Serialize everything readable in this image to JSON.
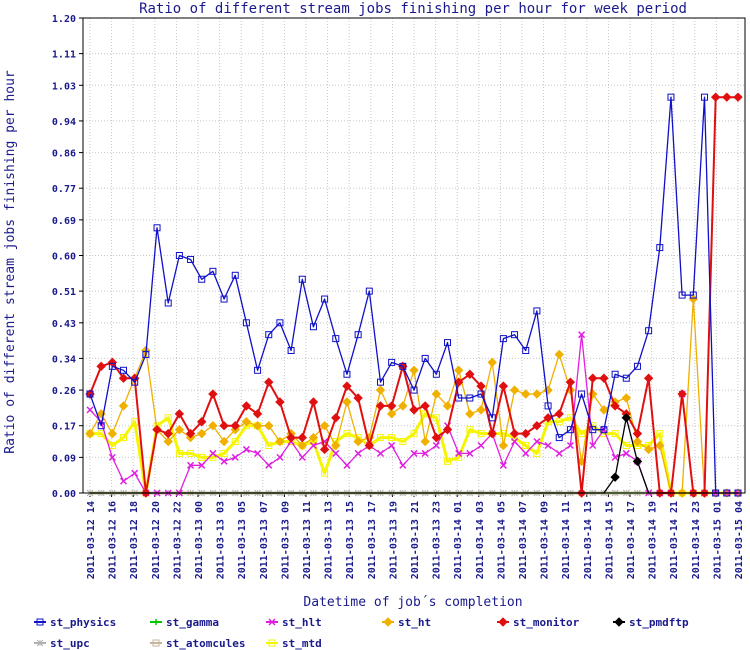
{
  "chart_data": {
    "type": "line",
    "title": "Ratio of different stream jobs finishing per hour for week period",
    "xlabel": "Datetime of job´s completion",
    "ylabel": "Ratio of different stream jobs finishing per hour",
    "ylim": [
      0,
      1.2
    ],
    "yticks": [
      "0.00",
      "0.09",
      "0.17",
      "0.26",
      "0.34",
      "0.43",
      "0.51",
      "0.60",
      "0.69",
      "0.77",
      "0.86",
      "0.94",
      "1.03",
      "1.11",
      "1.20"
    ],
    "xticks": [
      "2011-03-12 14",
      "2011-03-12 16",
      "2011-03-12 18",
      "2011-03-12 20",
      "2011-03-12 22",
      "2011-03-13 00",
      "2011-03-13 03",
      "2011-03-13 05",
      "2011-03-13 07",
      "2011-03-13 09",
      "2011-03-13 11",
      "2011-03-13 13",
      "2011-03-13 15",
      "2011-03-13 17",
      "2011-03-13 19",
      "2011-03-13 21",
      "2011-03-13 23",
      "2011-03-14 01",
      "2011-03-14 03",
      "2011-03-14 05",
      "2011-03-14 07",
      "2011-03-14 09",
      "2011-03-14 11",
      "2011-03-14 13",
      "2011-03-14 15",
      "2011-03-14 17",
      "2011-03-14 19",
      "2011-03-14 21",
      "2011-03-14 23",
      "2011-03-15 01",
      "2011-03-15 04"
    ],
    "n_points": 59,
    "grid": true,
    "legend_position": "bottom",
    "series": [
      {
        "name": "st_physics",
        "color": "#1010c8",
        "marker": "square",
        "values": [
          0.25,
          0.17,
          0.32,
          0.31,
          0.28,
          0.35,
          0.67,
          0.48,
          0.6,
          0.59,
          0.54,
          0.56,
          0.49,
          0.55,
          0.43,
          0.31,
          0.4,
          0.43,
          0.36,
          0.54,
          0.42,
          0.49,
          0.39,
          0.3,
          0.4,
          0.51,
          0.28,
          0.33,
          0.32,
          0.26,
          0.34,
          0.3,
          0.38,
          0.24,
          0.24,
          0.25,
          0.19,
          0.39,
          0.4,
          0.36,
          0.46,
          0.22,
          0.14,
          0.16,
          0.25,
          0.16,
          0.16,
          0.3,
          0.29,
          0.32,
          0.41,
          0.62,
          1.0,
          0.5,
          0.5,
          1.0,
          0.0,
          0.0,
          0.0
        ]
      },
      {
        "name": "st_gamma",
        "color": "#00c800",
        "marker": "plus",
        "values": [
          0.0,
          0.0,
          0.0,
          0.0,
          0.0,
          0.0,
          0.0,
          0.0,
          0.0,
          0.0,
          0.0,
          0.0,
          0.0,
          0.0,
          0.0,
          0.0,
          0.0,
          0.0,
          0.0,
          0.0,
          0.0,
          0.0,
          0.0,
          0.0,
          0.0,
          0.0,
          0.0,
          0.0,
          0.0,
          0.0,
          0.0,
          0.0,
          0.0,
          0.0,
          0.0,
          0.0,
          0.0,
          0.0,
          0.0,
          0.0,
          0.0,
          0.0,
          0.0,
          0.0,
          0.0,
          0.0,
          0.0,
          0.0,
          0.0,
          0.0,
          0.0,
          0.0,
          0.0,
          0.0,
          0.0,
          0.0,
          0.0,
          0.0,
          0.0
        ]
      },
      {
        "name": "st_hlt",
        "color": "#e020e0",
        "marker": "x",
        "values": [
          0.21,
          0.18,
          0.09,
          0.03,
          0.05,
          0.0,
          0.0,
          0.0,
          0.0,
          0.07,
          0.07,
          0.1,
          0.08,
          0.09,
          0.11,
          0.1,
          0.07,
          0.09,
          0.13,
          0.09,
          0.12,
          0.13,
          0.1,
          0.07,
          0.1,
          0.12,
          0.1,
          0.12,
          0.07,
          0.1,
          0.1,
          0.12,
          0.17,
          0.1,
          0.1,
          0.12,
          0.15,
          0.07,
          0.13,
          0.1,
          0.13,
          0.12,
          0.1,
          0.12,
          0.4,
          0.12,
          0.16,
          0.09,
          0.1,
          0.08,
          0.0,
          0.0,
          0.0,
          0.25,
          0.0,
          0.0,
          0.0,
          0.0,
          0.0
        ]
      },
      {
        "name": "st_ht",
        "color": "#f0b000",
        "marker": "diamond",
        "values": [
          0.15,
          0.2,
          0.15,
          0.22,
          0.29,
          0.36,
          0.16,
          0.13,
          0.16,
          0.14,
          0.15,
          0.17,
          0.13,
          0.16,
          0.18,
          0.17,
          0.17,
          0.13,
          0.15,
          0.12,
          0.14,
          0.17,
          0.12,
          0.23,
          0.13,
          0.14,
          0.26,
          0.2,
          0.22,
          0.31,
          0.13,
          0.25,
          0.22,
          0.31,
          0.2,
          0.21,
          0.33,
          0.12,
          0.26,
          0.25,
          0.25,
          0.26,
          0.35,
          0.26,
          0.08,
          0.25,
          0.21,
          0.23,
          0.24,
          0.13,
          0.11,
          0.12,
          0.0,
          0.0,
          0.49,
          0.0,
          0.0,
          0.0,
          0.0
        ]
      },
      {
        "name": "st_monitor",
        "color": "#e01010",
        "marker": "diamond",
        "values": [
          0.25,
          0.32,
          0.33,
          0.29,
          0.29,
          0.0,
          0.16,
          0.15,
          0.2,
          0.15,
          0.18,
          0.25,
          0.17,
          0.17,
          0.22,
          0.2,
          0.28,
          0.23,
          0.14,
          0.14,
          0.23,
          0.11,
          0.19,
          0.27,
          0.24,
          0.12,
          0.22,
          0.22,
          0.32,
          0.21,
          0.22,
          0.14,
          0.16,
          0.28,
          0.3,
          0.27,
          0.15,
          0.27,
          0.15,
          0.15,
          0.17,
          0.19,
          0.2,
          0.28,
          0.0,
          0.29,
          0.29,
          0.22,
          0.2,
          0.15,
          0.29,
          0.0,
          0.0,
          0.25,
          0.0,
          0.0,
          1.0,
          1.0,
          1.0
        ]
      },
      {
        "name": "st_pmdftp",
        "color": "#000000",
        "marker": "diamond",
        "values": [
          0.0,
          0.0,
          0.0,
          0.0,
          0.0,
          0.0,
          0.0,
          0.0,
          0.0,
          0.0,
          0.0,
          0.0,
          0.0,
          0.0,
          0.0,
          0.0,
          0.0,
          0.0,
          0.0,
          0.0,
          0.0,
          0.0,
          0.0,
          0.0,
          0.0,
          0.0,
          0.0,
          0.0,
          0.0,
          0.0,
          0.0,
          0.0,
          0.0,
          0.0,
          0.0,
          0.0,
          0.0,
          0.0,
          0.0,
          0.0,
          0.0,
          0.0,
          0.0,
          0.0,
          0.0,
          0.0,
          0.0,
          0.04,
          0.19,
          0.08,
          0.0,
          0.0,
          0.0,
          0.0,
          0.0,
          0.0,
          0.0,
          0.0,
          0.0
        ]
      },
      {
        "name": "st_upc",
        "color": "#b0b0b0",
        "marker": "star",
        "values": [
          0.0,
          0.0,
          0.0,
          0.0,
          0.0,
          0.0,
          0.0,
          0.0,
          0.0,
          0.0,
          0.0,
          0.0,
          0.0,
          0.0,
          0.0,
          0.0,
          0.0,
          0.0,
          0.0,
          0.0,
          0.0,
          0.0,
          0.0,
          0.0,
          0.0,
          0.0,
          0.0,
          0.0,
          0.0,
          0.0,
          0.0,
          0.0,
          0.0,
          0.0,
          0.0,
          0.0,
          0.0,
          0.0,
          0.0,
          0.0,
          0.0,
          0.0,
          0.0,
          0.0,
          0.0,
          0.0,
          0.0,
          0.0,
          0.0,
          0.0,
          0.0,
          0.0,
          0.0,
          0.0,
          0.0,
          0.0,
          0.0,
          0.0,
          0.0
        ]
      },
      {
        "name": "st_atomcules",
        "color": "#c8b49a",
        "marker": "line",
        "values": [
          0.0,
          0.0,
          0.0,
          0.0,
          0.0,
          0.0,
          0.0,
          0.0,
          0.0,
          0.0,
          0.0,
          0.0,
          0.0,
          0.0,
          0.0,
          0.0,
          0.0,
          0.0,
          0.0,
          0.0,
          0.0,
          0.0,
          0.0,
          0.0,
          0.0,
          0.0,
          0.0,
          0.0,
          0.0,
          0.0,
          0.0,
          0.0,
          0.0,
          0.0,
          0.0,
          0.0,
          0.0,
          0.0,
          0.0,
          0.0,
          0.0,
          0.0,
          0.0,
          0.0,
          0.0,
          0.0,
          0.0,
          0.0,
          0.0,
          0.0,
          0.0,
          0.0,
          0.0,
          0.0,
          0.0,
          0.0,
          0.0,
          0.0,
          0.0
        ]
      },
      {
        "name": "st_mtd",
        "color": "#f5f500",
        "marker": "square",
        "values": [
          0.15,
          0.15,
          0.12,
          0.14,
          0.18,
          0.0,
          0.17,
          0.19,
          0.1,
          0.1,
          0.09,
          0.09,
          0.1,
          0.13,
          0.17,
          0.17,
          0.12,
          0.13,
          0.13,
          0.12,
          0.13,
          0.05,
          0.13,
          0.15,
          0.14,
          0.12,
          0.14,
          0.14,
          0.13,
          0.15,
          0.2,
          0.19,
          0.08,
          0.09,
          0.16,
          0.15,
          0.15,
          0.15,
          0.14,
          0.12,
          0.1,
          0.18,
          0.18,
          0.19,
          0.15,
          0.17,
          0.15,
          0.15,
          0.12,
          0.12,
          0.12,
          0.15,
          0.0,
          0.0,
          0.0,
          0.0,
          0.0,
          0.0,
          0.0
        ]
      }
    ]
  }
}
